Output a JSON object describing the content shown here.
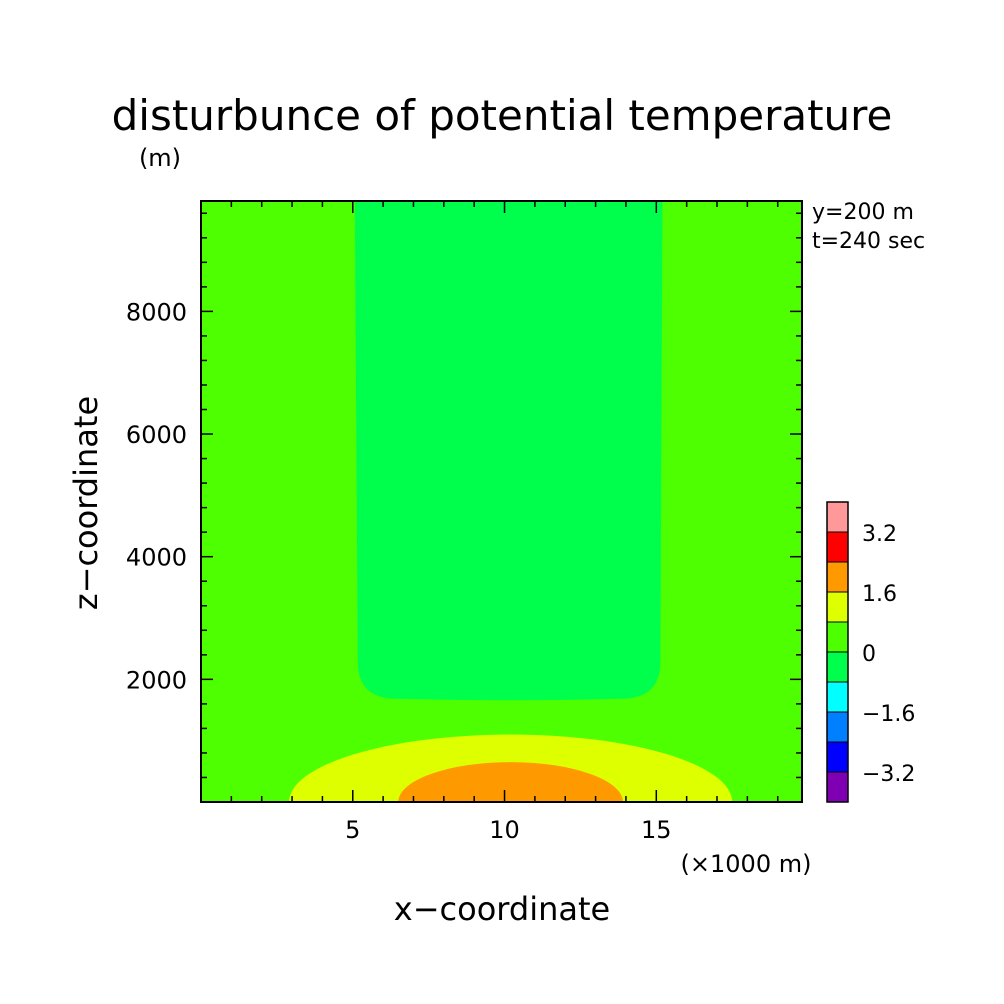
{
  "chart_data": {
    "type": "heatmap",
    "title": "disturbunce of potential temperature",
    "ylabel_unit": "(m)",
    "xlabel": "x−coordinate",
    "ylabel": "z−coordinate",
    "xunit_label": "(×1000 m)",
    "annotations": [
      "y=200 m",
      "t=240 sec"
    ],
    "xlim": [
      0,
      19.8
    ],
    "ylim": [
      0,
      9800
    ],
    "x_ticks": [
      5,
      10,
      15
    ],
    "y_ticks": [
      2000,
      4000,
      6000,
      8000
    ],
    "x_tick_labels": [
      "5",
      "10",
      "15"
    ],
    "y_tick_labels": [
      "2000",
      "4000",
      "6000",
      "8000"
    ],
    "colorbar": {
      "levels": [
        -4.0,
        -3.2,
        -2.4,
        -1.6,
        -0.8,
        0,
        0.8,
        1.6,
        2.4,
        3.2,
        4.0
      ],
      "colors": [
        "#7f00b2",
        "#0000ff",
        "#007fff",
        "#00ffff",
        "#00ff4d",
        "#4dff00",
        "#ddff00",
        "#ff9900",
        "#ff0000",
        "#ff9999"
      ],
      "labels": [
        "3.2",
        "1.6",
        "0",
        "−1.6",
        "−3.2"
      ]
    },
    "regions": [
      {
        "name": "background",
        "range": [
          0,
          0.8
        ],
        "color": "#4dff00"
      },
      {
        "name": "cool-column",
        "range": [
          -0.8,
          0
        ],
        "color": "#00ff4d",
        "x_range": [
          5.0,
          15.3
        ],
        "z_range": [
          1700,
          9800
        ]
      },
      {
        "name": "warm-outer",
        "range": [
          0.8,
          1.6
        ],
        "color": "#ddff00",
        "x_center": 10.2,
        "x_halfwidth": 7.3,
        "z_top": 1100
      },
      {
        "name": "warm-core",
        "range": [
          1.6,
          2.4
        ],
        "color": "#ff9900",
        "x_center": 10.2,
        "x_halfwidth": 3.7,
        "z_top": 650
      }
    ]
  }
}
